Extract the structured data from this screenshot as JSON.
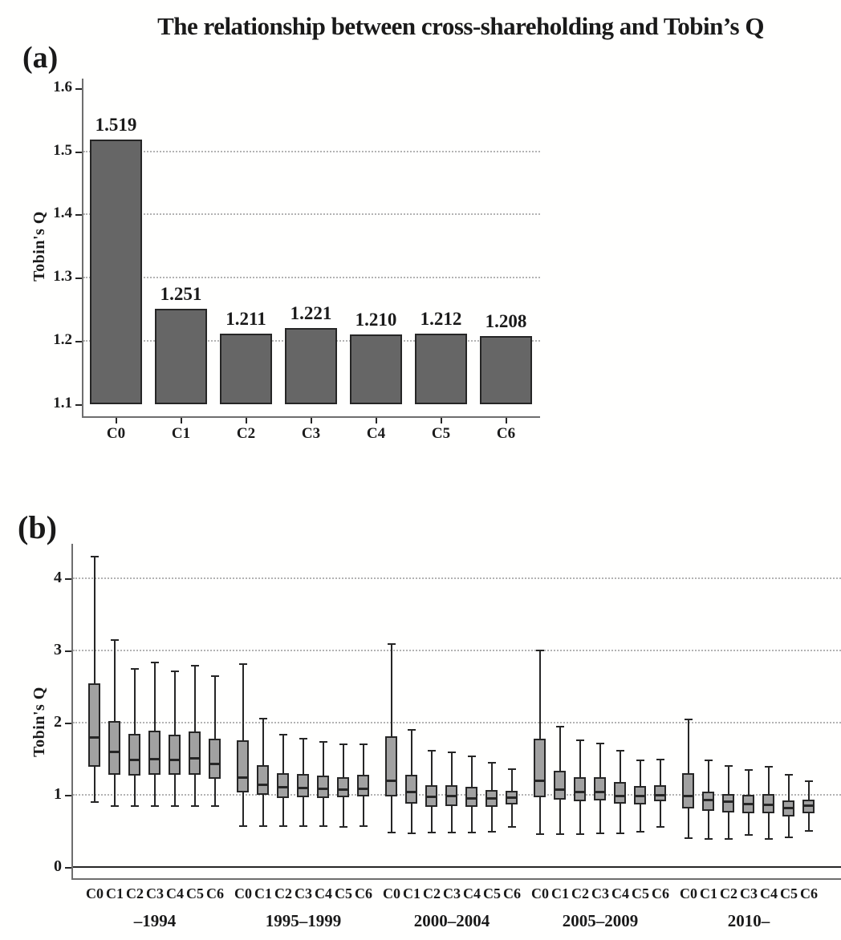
{
  "title": "The relationship between cross-shareholding and Tobin’s Q",
  "colors": {
    "bar_fill": "#666666",
    "box_fill": "#a1a1a1",
    "line_dark": "#262626",
    "frame": "#6e6e6e",
    "grid": "#b3b3b3",
    "text": "#1a1a1a",
    "background": "#ffffff"
  },
  "chart_data": [
    {
      "id": "panel_a",
      "panel_label": "(a)",
      "type": "bar",
      "ylabel": "Tobin's Q",
      "categories": [
        "C0",
        "C1",
        "C2",
        "C3",
        "C4",
        "C5",
        "C6"
      ],
      "values": [
        1.519,
        1.251,
        1.211,
        1.221,
        1.21,
        1.212,
        1.208
      ],
      "value_labels": [
        "1.519",
        "1.251",
        "1.211",
        "1.221",
        "1.210",
        "1.212",
        "1.208"
      ],
      "ylim": [
        1.1,
        1.6
      ],
      "yticks": [
        1.1,
        1.2,
        1.3,
        1.4,
        1.5,
        1.6
      ],
      "gridlines": [
        1.2,
        1.3,
        1.4,
        1.5
      ],
      "grid_style": "horizontal dotted",
      "legend": "none"
    },
    {
      "id": "panel_b",
      "panel_label": "(b)",
      "type": "boxplot",
      "ylabel": "Tobin's Q",
      "categories": [
        "C0",
        "C1",
        "C2",
        "C3",
        "C4",
        "C5",
        "C6"
      ],
      "ylim": [
        0,
        4.5
      ],
      "yticks": [
        0,
        1,
        2,
        3,
        4
      ],
      "gridlines": [
        1,
        2,
        3,
        4
      ],
      "zero_line": 0,
      "grid_style": "horizontal dotted",
      "groups": [
        {
          "label": "–1994",
          "boxes": [
            {
              "category": "C0",
              "whisker_low": 0.9,
              "q1": 1.4,
              "median": 1.8,
              "q3": 2.55,
              "whisker_high": 4.3
            },
            {
              "category": "C1",
              "whisker_low": 0.85,
              "q1": 1.28,
              "median": 1.6,
              "q3": 2.02,
              "whisker_high": 3.14
            },
            {
              "category": "C2",
              "whisker_low": 0.84,
              "q1": 1.26,
              "median": 1.49,
              "q3": 1.84,
              "whisker_high": 2.74
            },
            {
              "category": "C3",
              "whisker_low": 0.84,
              "q1": 1.28,
              "median": 1.5,
              "q3": 1.89,
              "whisker_high": 2.83
            },
            {
              "category": "C4",
              "whisker_low": 0.84,
              "q1": 1.27,
              "median": 1.49,
              "q3": 1.83,
              "whisker_high": 2.71
            },
            {
              "category": "C5",
              "whisker_low": 0.84,
              "q1": 1.28,
              "median": 1.51,
              "q3": 1.88,
              "whisker_high": 2.79
            },
            {
              "category": "C6",
              "whisker_low": 0.84,
              "q1": 1.23,
              "median": 1.43,
              "q3": 1.78,
              "whisker_high": 2.64
            }
          ]
        },
        {
          "label": "1995–1999",
          "boxes": [
            {
              "category": "C0",
              "whisker_low": 0.57,
              "q1": 1.04,
              "median": 1.24,
              "q3": 1.76,
              "whisker_high": 2.81
            },
            {
              "category": "C1",
              "whisker_low": 0.57,
              "q1": 1.0,
              "median": 1.14,
              "q3": 1.41,
              "whisker_high": 2.06
            },
            {
              "category": "C2",
              "whisker_low": 0.57,
              "q1": 0.96,
              "median": 1.11,
              "q3": 1.3,
              "whisker_high": 1.83
            },
            {
              "category": "C3",
              "whisker_low": 0.57,
              "q1": 0.97,
              "median": 1.1,
              "q3": 1.29,
              "whisker_high": 1.78
            },
            {
              "category": "C4",
              "whisker_low": 0.57,
              "q1": 0.96,
              "median": 1.09,
              "q3": 1.27,
              "whisker_high": 1.73
            },
            {
              "category": "C5",
              "whisker_low": 0.56,
              "q1": 0.96,
              "median": 1.08,
              "q3": 1.24,
              "whisker_high": 1.7
            },
            {
              "category": "C6",
              "whisker_low": 0.57,
              "q1": 0.98,
              "median": 1.09,
              "q3": 1.28,
              "whisker_high": 1.7
            }
          ]
        },
        {
          "label": "2000–2004",
          "boxes": [
            {
              "category": "C0",
              "whisker_low": 0.48,
              "q1": 0.98,
              "median": 1.2,
              "q3": 1.81,
              "whisker_high": 3.09
            },
            {
              "category": "C1",
              "whisker_low": 0.47,
              "q1": 0.88,
              "median": 1.04,
              "q3": 1.28,
              "whisker_high": 1.9
            },
            {
              "category": "C2",
              "whisker_low": 0.48,
              "q1": 0.83,
              "median": 0.98,
              "q3": 1.13,
              "whisker_high": 1.61
            },
            {
              "category": "C3",
              "whisker_low": 0.48,
              "q1": 0.84,
              "median": 0.99,
              "q3": 1.13,
              "whisker_high": 1.59
            },
            {
              "category": "C4",
              "whisker_low": 0.48,
              "q1": 0.83,
              "median": 0.96,
              "q3": 1.11,
              "whisker_high": 1.53
            },
            {
              "category": "C5",
              "whisker_low": 0.49,
              "q1": 0.84,
              "median": 0.96,
              "q3": 1.07,
              "whisker_high": 1.44
            },
            {
              "category": "C6",
              "whisker_low": 0.56,
              "q1": 0.87,
              "median": 0.97,
              "q3": 1.06,
              "whisker_high": 1.36
            }
          ]
        },
        {
          "label": "2005–2009",
          "boxes": [
            {
              "category": "C0",
              "whisker_low": 0.46,
              "q1": 0.97,
              "median": 1.2,
              "q3": 1.78,
              "whisker_high": 3.0
            },
            {
              "category": "C1",
              "whisker_low": 0.46,
              "q1": 0.93,
              "median": 1.08,
              "q3": 1.33,
              "whisker_high": 1.95
            },
            {
              "category": "C2",
              "whisker_low": 0.46,
              "q1": 0.92,
              "median": 1.05,
              "q3": 1.25,
              "whisker_high": 1.76
            },
            {
              "category": "C3",
              "whisker_low": 0.47,
              "q1": 0.92,
              "median": 1.04,
              "q3": 1.24,
              "whisker_high": 1.71
            },
            {
              "category": "C4",
              "whisker_low": 0.47,
              "q1": 0.88,
              "median": 0.99,
              "q3": 1.18,
              "whisker_high": 1.61
            },
            {
              "category": "C5",
              "whisker_low": 0.49,
              "q1": 0.86,
              "median": 0.99,
              "q3": 1.12,
              "whisker_high": 1.48
            },
            {
              "category": "C6",
              "whisker_low": 0.56,
              "q1": 0.91,
              "median": 1.0,
              "q3": 1.13,
              "whisker_high": 1.49
            }
          ]
        },
        {
          "label": "2010–",
          "boxes": [
            {
              "category": "C0",
              "whisker_low": 0.4,
              "q1": 0.81,
              "median": 0.99,
              "q3": 1.3,
              "whisker_high": 2.04
            },
            {
              "category": "C1",
              "whisker_low": 0.39,
              "q1": 0.77,
              "median": 0.93,
              "q3": 1.04,
              "whisker_high": 1.48
            },
            {
              "category": "C2",
              "whisker_low": 0.39,
              "q1": 0.76,
              "median": 0.91,
              "q3": 1.01,
              "whisker_high": 1.4
            },
            {
              "category": "C3",
              "whisker_low": 0.44,
              "q1": 0.75,
              "median": 0.88,
              "q3": 1.0,
              "whisker_high": 1.34
            },
            {
              "category": "C4",
              "whisker_low": 0.39,
              "q1": 0.74,
              "median": 0.87,
              "q3": 1.01,
              "whisker_high": 1.39
            },
            {
              "category": "C5",
              "whisker_low": 0.41,
              "q1": 0.7,
              "median": 0.82,
              "q3": 0.92,
              "whisker_high": 1.28
            },
            {
              "category": "C6",
              "whisker_low": 0.5,
              "q1": 0.74,
              "median": 0.86,
              "q3": 0.93,
              "whisker_high": 1.19
            }
          ]
        }
      ]
    }
  ]
}
